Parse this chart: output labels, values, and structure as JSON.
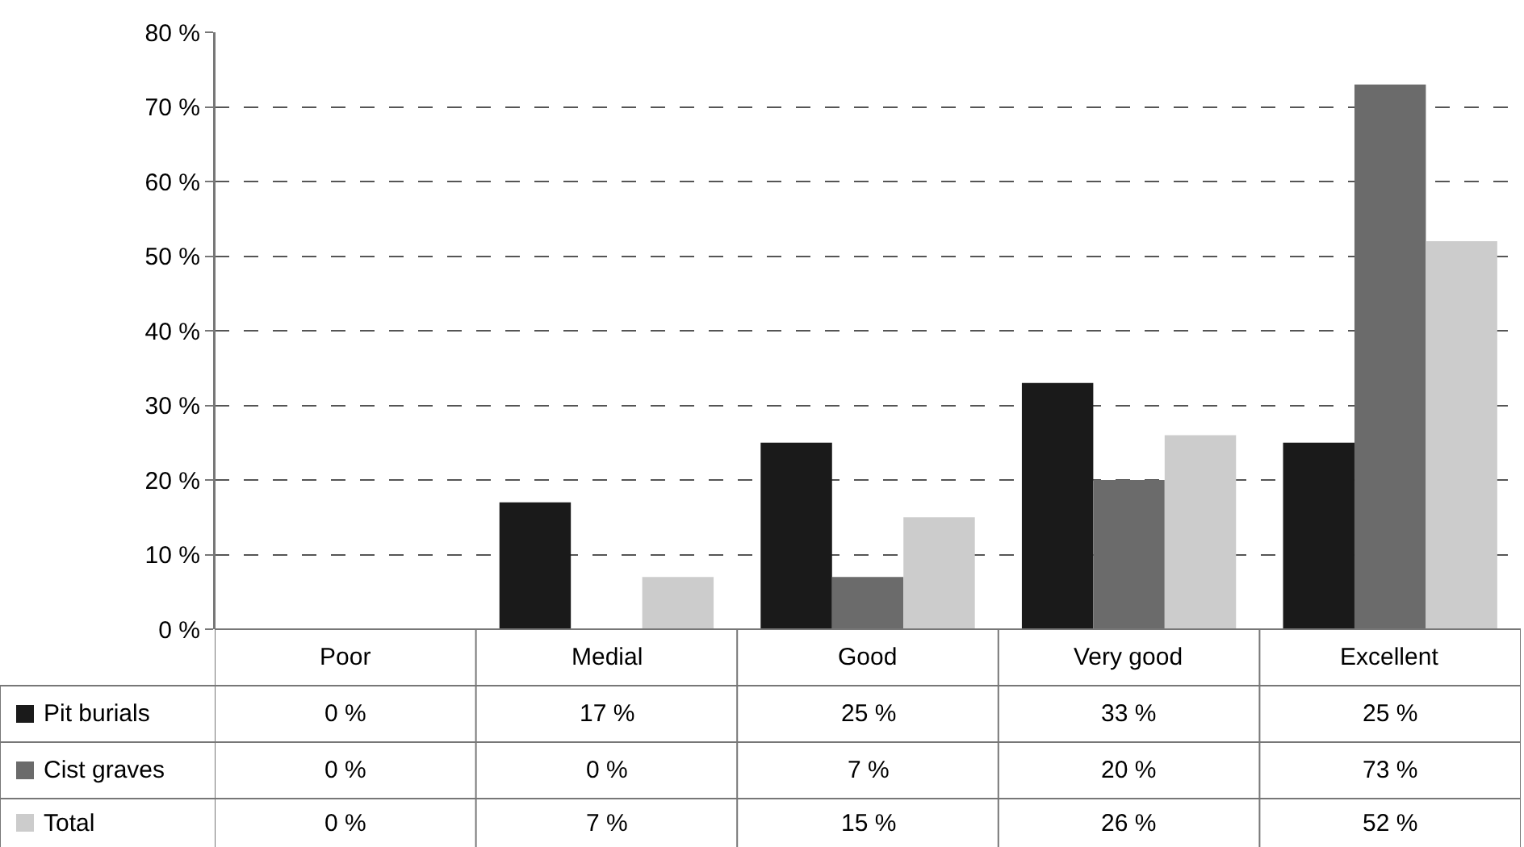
{
  "chart_data": {
    "type": "bar",
    "categories": [
      "Poor",
      "Medial",
      "Good",
      "Very good",
      "Excellent"
    ],
    "series": [
      {
        "name": "Pit burials",
        "color": "#1a1a1a",
        "values": [
          0,
          17,
          25,
          33,
          25
        ],
        "value_labels": [
          "0 %",
          "17 %",
          "25 %",
          "33 %",
          "25 %"
        ]
      },
      {
        "name": "Cist graves",
        "color": "#6b6b6b",
        "values": [
          0,
          0,
          7,
          20,
          73
        ],
        "value_labels": [
          "0 %",
          "0 %",
          "7 %",
          "20 %",
          "73 %"
        ]
      },
      {
        "name": "Total",
        "color": "#cccccc",
        "values": [
          0,
          7,
          15,
          26,
          52
        ],
        "value_labels": [
          "0 %",
          "7 %",
          "15 %",
          "26 %",
          "52 %"
        ]
      }
    ],
    "ylim": [
      0,
      80
    ],
    "yticks": [
      {
        "value": 0,
        "label": "0 %"
      },
      {
        "value": 10,
        "label": "10 %"
      },
      {
        "value": 20,
        "label": "20 %"
      },
      {
        "value": 30,
        "label": "30 %"
      },
      {
        "value": 40,
        "label": "40 %"
      },
      {
        "value": 50,
        "label": "50 %"
      },
      {
        "value": 60,
        "label": "60 %"
      },
      {
        "value": 70,
        "label": "70 %"
      },
      {
        "value": 80,
        "label": "80 %"
      }
    ],
    "grid": "y",
    "line_style": "dashed",
    "legend": "bottom left"
  }
}
